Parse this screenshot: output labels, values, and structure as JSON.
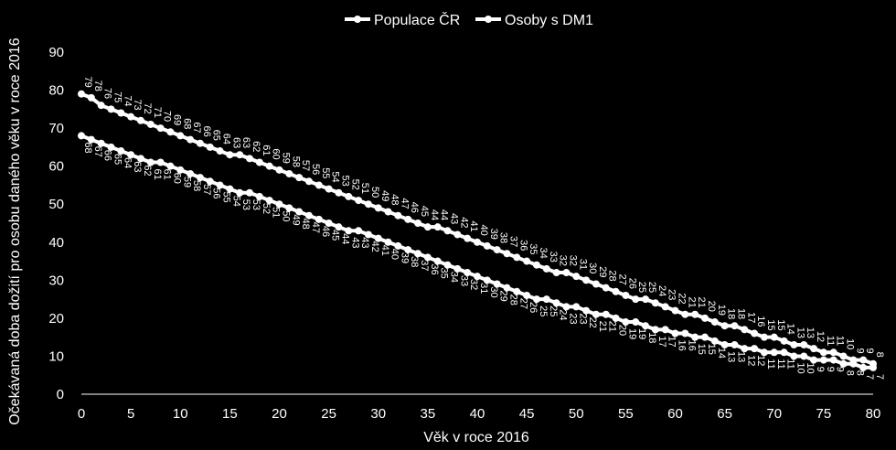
{
  "chart_data": {
    "type": "line",
    "title": "",
    "xlabel": "Věk v roce 2016",
    "ylabel": "Očekávaná doba dožití pro osobu daného věku v roce 2016",
    "xlim": [
      0,
      80
    ],
    "ylim": [
      0,
      90
    ],
    "x_ticks": [
      0,
      5,
      10,
      15,
      20,
      25,
      30,
      35,
      40,
      45,
      50,
      55,
      60,
      65,
      70,
      75,
      80
    ],
    "y_ticks": [
      0,
      10,
      20,
      30,
      40,
      50,
      60,
      70,
      80,
      90
    ],
    "grid": false,
    "legend_position": "top",
    "x": [
      0,
      1,
      2,
      3,
      4,
      5,
      6,
      7,
      8,
      9,
      10,
      11,
      12,
      13,
      14,
      15,
      16,
      17,
      18,
      19,
      20,
      21,
      22,
      23,
      24,
      25,
      26,
      27,
      28,
      29,
      30,
      31,
      32,
      33,
      34,
      35,
      36,
      37,
      38,
      39,
      40,
      41,
      42,
      43,
      44,
      45,
      46,
      47,
      48,
      49,
      50,
      51,
      52,
      53,
      54,
      55,
      56,
      57,
      58,
      59,
      60,
      61,
      62,
      63,
      64,
      65,
      66,
      67,
      68,
      69,
      70,
      71,
      72,
      73,
      74,
      75,
      76,
      77,
      78,
      79,
      80
    ],
    "series": [
      {
        "name": "Populace ČR",
        "color": "#ffffff",
        "values": [
          79,
          78,
          76,
          75,
          74,
          73,
          72,
          71,
          70,
          69,
          68,
          67,
          66,
          65,
          64,
          63,
          63,
          62,
          61,
          60,
          59,
          58,
          57,
          56,
          55,
          54,
          53,
          52,
          51,
          50,
          49,
          48,
          47,
          46,
          45,
          44,
          44,
          43,
          42,
          41,
          40,
          39,
          38,
          37,
          36,
          35,
          34,
          33,
          32,
          32,
          31,
          30,
          29,
          28,
          27,
          26,
          25,
          25,
          24,
          23,
          22,
          21,
          21,
          20,
          19,
          18,
          18,
          17,
          16,
          15,
          15,
          14,
          13,
          13,
          12,
          11,
          11,
          10,
          9,
          9,
          8
        ]
      },
      {
        "name": "Osoby s DM1",
        "color": "#ffffff",
        "values": [
          68,
          67,
          66,
          65,
          64,
          63,
          62,
          61,
          61,
          60,
          59,
          58,
          57,
          56,
          55,
          54,
          53,
          53,
          52,
          51,
          50,
          49,
          48,
          47,
          46,
          45,
          44,
          43,
          43,
          42,
          41,
          40,
          39,
          38,
          37,
          36,
          35,
          34,
          33,
          32,
          31,
          30,
          29,
          28,
          27,
          26,
          25,
          25,
          24,
          23,
          23,
          22,
          21,
          21,
          20,
          19,
          19,
          18,
          17,
          17,
          16,
          16,
          15,
          15,
          14,
          13,
          13,
          12,
          12,
          11,
          11,
          11,
          10,
          10,
          9,
          9,
          9,
          8,
          8,
          7,
          7
        ]
      }
    ]
  }
}
